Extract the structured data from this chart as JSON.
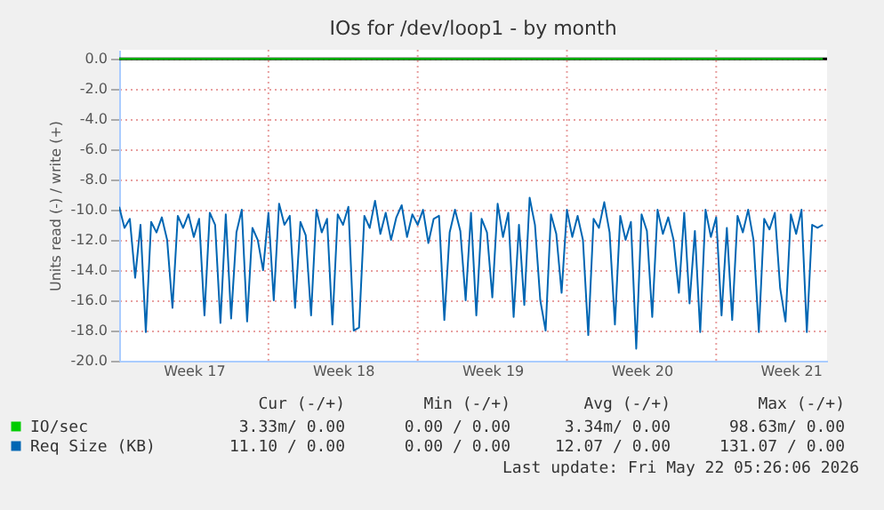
{
  "chart_data": {
    "type": "line",
    "title": "IOs for /dev/loop1 - by month",
    "ylabel": "Units read (-) / write (+)",
    "categories": [
      null,
      null,
      null,
      null,
      null,
      null,
      null,
      null,
      null,
      null,
      null,
      null,
      null,
      null,
      "Week 17",
      null,
      null,
      null,
      null,
      null,
      null,
      null,
      null,
      null,
      null,
      null,
      null,
      null,
      null,
      null,
      null,
      null,
      null,
      null,
      null,
      null,
      null,
      null,
      null,
      null,
      null,
      null,
      "Week 18",
      null,
      null,
      null,
      null,
      null,
      null,
      null,
      null,
      null,
      null,
      null,
      null,
      null,
      null,
      null,
      null,
      null,
      null,
      null,
      null,
      null,
      null,
      null,
      null,
      null,
      null,
      null,
      "Week 19",
      null,
      null,
      null,
      null,
      null,
      null,
      null,
      null,
      null,
      null,
      null,
      null,
      null,
      null,
      null,
      null,
      null,
      null,
      null,
      null,
      null,
      null,
      null,
      null,
      null,
      null,
      null,
      "Week 20",
      null,
      null,
      null,
      null,
      null,
      null,
      null,
      null,
      null,
      null,
      null,
      null,
      null,
      null,
      null,
      null,
      null,
      null,
      null,
      null,
      null,
      null,
      null,
      null,
      null,
      null,
      null,
      "Week 21",
      null,
      null,
      null,
      null,
      null,
      null
    ],
    "series": [
      {
        "name": "IO/sec",
        "color": "#00cc00",
        "values": [
          0,
          0,
          0,
          0,
          0,
          0,
          0,
          0,
          0,
          0,
          0,
          0,
          0,
          0,
          0,
          0,
          0,
          0,
          0,
          0,
          0,
          0,
          0,
          0,
          0,
          0,
          0,
          0,
          0,
          0,
          0,
          0,
          0,
          0,
          0,
          0,
          0,
          0,
          0,
          0,
          0,
          0,
          0,
          0,
          0,
          0,
          0,
          0,
          0,
          0,
          0,
          0,
          0,
          0,
          0,
          0,
          0,
          0,
          0,
          0,
          0,
          0,
          0,
          0,
          0,
          0,
          0,
          0,
          0,
          0,
          0,
          0,
          0,
          0,
          0,
          0,
          0,
          0,
          0,
          0,
          0,
          0,
          0,
          0,
          0,
          0,
          0,
          0,
          0,
          0,
          0,
          0,
          0,
          0,
          0,
          0,
          0,
          0,
          0,
          0,
          0,
          0,
          0,
          0,
          0,
          0,
          0,
          0,
          0,
          0,
          0,
          0,
          0,
          0,
          0,
          0,
          0,
          0,
          0,
          0,
          0,
          0,
          0,
          0,
          0,
          0,
          0,
          0,
          0,
          0,
          0,
          0,
          0
        ]
      },
      {
        "name": "Req Size (KB)",
        "color": "#0066b3",
        "values": [
          -9.8,
          -11.2,
          -10.6,
          -14.5,
          -11.0,
          -18.1,
          -10.8,
          -11.5,
          -10.5,
          -12.0,
          -16.5,
          -10.4,
          -11.2,
          -10.3,
          -11.8,
          -10.6,
          -17.0,
          -10.2,
          -11.0,
          -17.5,
          -10.3,
          -17.2,
          -11.5,
          -10.0,
          -17.4,
          -11.2,
          -12.0,
          -14.0,
          -10.2,
          -16.0,
          -9.6,
          -11.0,
          -10.4,
          -16.5,
          -10.8,
          -11.7,
          -17.0,
          -10.0,
          -11.5,
          -10.6,
          -17.6,
          -10.3,
          -11.0,
          -9.8,
          -18.0,
          -17.8,
          -10.4,
          -11.2,
          -9.4,
          -11.6,
          -10.2,
          -12.0,
          -10.5,
          -9.7,
          -11.8,
          -10.3,
          -11.0,
          -10.0,
          -12.2,
          -10.6,
          -10.4,
          -17.3,
          -11.5,
          -10.0,
          -11.4,
          -16.0,
          -10.2,
          -17.0,
          -10.6,
          -11.5,
          -15.8,
          -9.6,
          -11.8,
          -10.2,
          -17.1,
          -11.0,
          -16.3,
          -9.2,
          -11.0,
          -16.0,
          -18.0,
          -10.3,
          -11.6,
          -15.5,
          -10.0,
          -11.8,
          -10.4,
          -12.0,
          -18.3,
          -10.6,
          -11.2,
          -9.5,
          -11.5,
          -17.6,
          -10.4,
          -12.0,
          -10.8,
          -19.2,
          -10.3,
          -11.4,
          -17.1,
          -10.0,
          -11.6,
          -10.5,
          -12.0,
          -15.5,
          -10.2,
          -16.2,
          -11.4,
          -18.1,
          -10.0,
          -11.8,
          -10.5,
          -17.0,
          -11.2,
          -17.3,
          -10.4,
          -11.5,
          -10.0,
          -12.0,
          -18.1,
          -10.6,
          -11.3,
          -10.2,
          -15.2,
          -17.4,
          -10.3,
          -11.6,
          -10.0,
          -18.1,
          -11.0,
          -11.2,
          -11.0
        ]
      }
    ],
    "ylim": [
      -20,
      0.6
    ],
    "yticks": [
      {
        "value": 0,
        "label": "0.0"
      },
      {
        "value": -2,
        "label": "-2.0"
      },
      {
        "value": -4,
        "label": "-4.0"
      },
      {
        "value": -6,
        "label": "-6.0"
      },
      {
        "value": -8,
        "label": "-8.0"
      },
      {
        "value": -10,
        "label": "-10.0"
      },
      {
        "value": -12,
        "label": "-12.0"
      },
      {
        "value": -14,
        "label": "-14.0"
      },
      {
        "value": -16,
        "label": "-16.0"
      },
      {
        "value": -18,
        "label": "-18.0"
      },
      {
        "value": -20,
        "label": "-20.0"
      }
    ],
    "ref_lines": [
      {
        "axis": "y",
        "value": 0,
        "color": "#000000"
      }
    ],
    "grid": true,
    "legend": "bottom",
    "annotations": [
      "Cur (-/+)",
      "Min (-/+)",
      "Avg (-/+)",
      "Max (-/+)",
      "3.33m/ 0.00",
      "0.00 / 0.00",
      "3.34m/ 0.00",
      "98.63m/ 0.00",
      "11.10 / 0.00",
      "0.00 / 0.00",
      "12.07 / 0.00",
      "131.07 / 0.00",
      "Last update: Fri May 22 05:26:06 2026"
    ]
  }
}
